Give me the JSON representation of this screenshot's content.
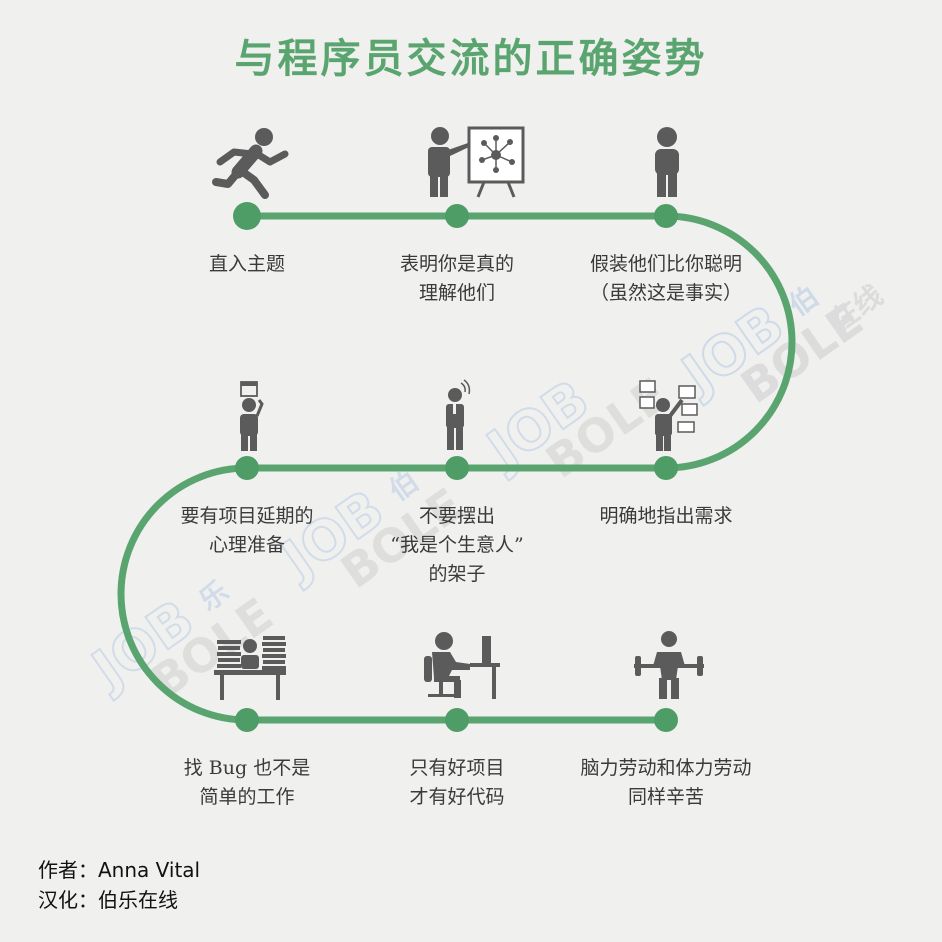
{
  "title": "与程序员交流的正确姿势",
  "colors": {
    "accent": "#5aa56f",
    "node": "#4f9d66",
    "icon": "#5b5b5b",
    "background": "#f0f0ef"
  },
  "steps": [
    {
      "lines": [
        "直入主题"
      ],
      "icon": "running-person-icon"
    },
    {
      "lines": [
        "表明你是真的",
        "理解他们"
      ],
      "icon": "presenter-with-board-icon"
    },
    {
      "lines": [
        "假装他们比你聪明",
        "（虽然这是事实）"
      ],
      "icon": "standing-person-icon"
    },
    {
      "lines": [
        "要有项目延期的",
        "心理准备"
      ],
      "icon": "person-with-calendar-icon"
    },
    {
      "lines": [
        "不要摆出",
        "“我是个生意人”",
        "的架子"
      ],
      "icon": "businessman-on-phone-icon"
    },
    {
      "lines": [
        "明确地指出需求"
      ],
      "icon": "person-with-screens-icon"
    },
    {
      "lines": [
        "找 Bug 也不是",
        "简单的工作"
      ],
      "icon": "desk-with-paper-stacks-icon"
    },
    {
      "lines": [
        "只有好项目",
        "才有好代码"
      ],
      "icon": "programmer-at-computer-icon"
    },
    {
      "lines": [
        "脑力劳动和体力劳动",
        "同样辛苦"
      ],
      "icon": "weightlifter-icon"
    }
  ],
  "watermarks": [
    {
      "word1": "JOB",
      "word2": "BOLE",
      "cn1": "伯",
      "cn2": "乐",
      "cn3": "在线"
    }
  ],
  "credits": {
    "author": "作者：Anna Vital",
    "translator": "汉化：伯乐在线"
  }
}
